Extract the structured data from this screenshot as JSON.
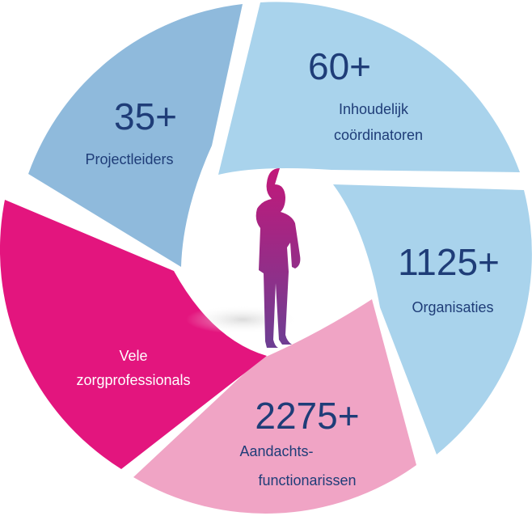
{
  "segments": [
    {
      "number": "35+",
      "label": [
        "Projectleiders"
      ]
    },
    {
      "number": "60+",
      "label": [
        "Inhoudelijk",
        "coördinatoren"
      ]
    },
    {
      "number": "1125+",
      "label": [
        "Organisaties"
      ]
    },
    {
      "number": "2275+",
      "label": [
        "Aandachts-",
        "functionarissen"
      ]
    },
    {
      "label": [
        "Vele",
        "zorgprofessionals"
      ]
    }
  ]
}
